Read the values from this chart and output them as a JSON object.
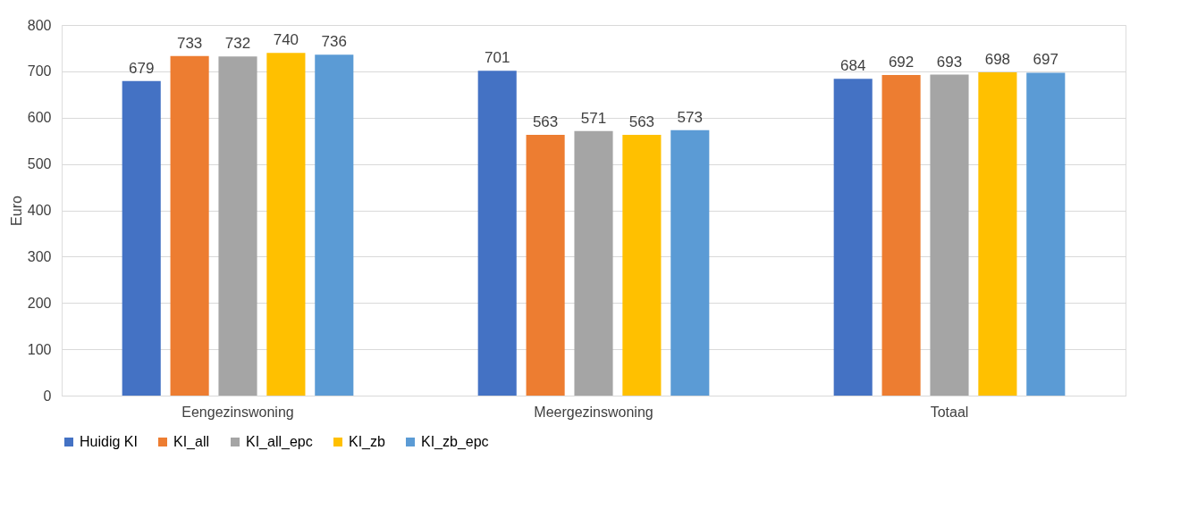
{
  "chart_data": {
    "type": "bar",
    "ylabel": "Euro",
    "categories": [
      "Eengezinswoning",
      "Meergezinswoning",
      "Totaal"
    ],
    "series": [
      {
        "name": "Huidig KI",
        "color": "#4472c4",
        "values": [
          679,
          701,
          684
        ]
      },
      {
        "name": "KI_all",
        "color": "#ed7d31",
        "values": [
          733,
          563,
          692
        ]
      },
      {
        "name": "KI_all_epc",
        "color": "#a5a5a5",
        "values": [
          732,
          571,
          693
        ]
      },
      {
        "name": "KI_zb",
        "color": "#ffc000",
        "values": [
          740,
          563,
          698
        ]
      },
      {
        "name": "KI_zb_epc",
        "color": "#5b9bd5",
        "values": [
          736,
          573,
          697
        ]
      }
    ],
    "ylim": [
      0,
      800
    ],
    "yticks": [
      0,
      100,
      200,
      300,
      400,
      500,
      600,
      700,
      800
    ],
    "grid": "y",
    "legend": "bottom",
    "data_labels": true
  }
}
